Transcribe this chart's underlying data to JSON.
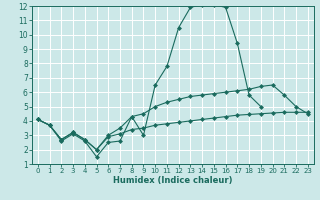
{
  "bg_color": "#cce8e8",
  "grid_color": "#ffffff",
  "line_color": "#1a6b5e",
  "marker": "D",
  "marker_size": 2.0,
  "xlabel": "Humidex (Indice chaleur)",
  "xlim": [
    -0.5,
    23.5
  ],
  "ylim": [
    1,
    12
  ],
  "xticks": [
    0,
    1,
    2,
    3,
    4,
    5,
    6,
    7,
    8,
    9,
    10,
    11,
    12,
    13,
    14,
    15,
    16,
    17,
    18,
    19,
    20,
    21,
    22,
    23
  ],
  "yticks": [
    1,
    2,
    3,
    4,
    5,
    6,
    7,
    8,
    9,
    10,
    11,
    12
  ],
  "line1_x": [
    0,
    1,
    2,
    3,
    4,
    5,
    6,
    7,
    8,
    9,
    10,
    11,
    12,
    13,
    14,
    15,
    16,
    17,
    18,
    19
  ],
  "line1_y": [
    4.1,
    3.7,
    2.6,
    3.1,
    2.6,
    1.5,
    2.5,
    2.6,
    4.3,
    3.0,
    6.5,
    7.8,
    10.5,
    11.9,
    12.1,
    12.1,
    11.9,
    9.4,
    5.8,
    5.0
  ],
  "line2_x": [
    0,
    1,
    2,
    3,
    4,
    5,
    6,
    7,
    8,
    9,
    10,
    11,
    12,
    13,
    14,
    15,
    16,
    17,
    18,
    19,
    20,
    21,
    22,
    23
  ],
  "line2_y": [
    4.1,
    3.7,
    2.7,
    3.2,
    2.7,
    2.0,
    2.9,
    3.1,
    3.4,
    3.5,
    3.7,
    3.8,
    3.9,
    4.0,
    4.1,
    4.2,
    4.3,
    4.4,
    4.45,
    4.5,
    4.55,
    4.6,
    4.6,
    4.6
  ],
  "line3_x": [
    0,
    1,
    2,
    3,
    4,
    5,
    6,
    7,
    8,
    9,
    10,
    11,
    12,
    13,
    14,
    15,
    16,
    17,
    18,
    19,
    20,
    21,
    22,
    23
  ],
  "line3_y": [
    4.1,
    3.7,
    2.7,
    3.2,
    2.7,
    2.0,
    3.0,
    3.5,
    4.3,
    4.5,
    5.0,
    5.3,
    5.5,
    5.7,
    5.8,
    5.9,
    6.0,
    6.1,
    6.2,
    6.4,
    6.5,
    5.8,
    5.0,
    4.5
  ],
  "tick_fontsize": 5.5,
  "xlabel_fontsize": 6.0,
  "linewidth": 0.8
}
